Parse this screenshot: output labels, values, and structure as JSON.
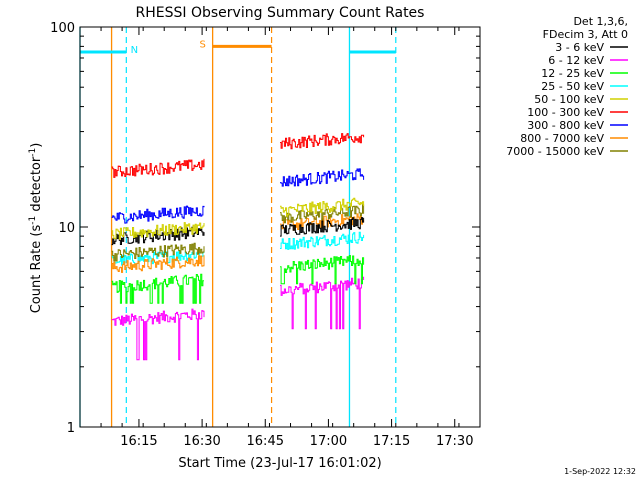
{
  "chart_data": {
    "type": "line",
    "title": "RHESSI Observing Summary Count Rates",
    "xlabel": "Start Time (23-Jul-17 16:01:02)",
    "ylabel_main": "Count Rate (s",
    "ylabel_sup1": "-1",
    "ylabel_mid": " detector",
    "ylabel_sup2": "-1",
    "ylabel_end": ")",
    "yscale": "log",
    "ylim": [
      1,
      100
    ],
    "xlim_minutes": [
      0,
      95
    ],
    "x_ticks": [
      {
        "minute": 14,
        "label": "16:15"
      },
      {
        "minute": 29,
        "label": "16:30"
      },
      {
        "minute": 44,
        "label": "16:45"
      },
      {
        "minute": 59,
        "label": "17:00"
      },
      {
        "minute": 74,
        "label": "17:15"
      },
      {
        "minute": 89,
        "label": "17:30"
      }
    ],
    "y_ticks": [
      {
        "value": 1,
        "label": "1"
      },
      {
        "value": 10,
        "label": "10"
      },
      {
        "value": 100,
        "label": "100"
      }
    ],
    "legend_header": [
      "Det 1,3,6,",
      "FDecim 3, Att 0"
    ],
    "intervals": [
      {
        "start_minute": 7.5,
        "end_minute": 29.5
      },
      {
        "start_minute": 47.5,
        "end_minute": 67.5
      }
    ],
    "series": [
      {
        "name": "3 - 6 keV",
        "color": "#000000",
        "level1": 9.0,
        "level2": 10.0
      },
      {
        "name": "6 - 12 keV",
        "color": "#ff00ff",
        "level1": 3.5,
        "level2": 5.0
      },
      {
        "name": "12 - 25 keV",
        "color": "#00ff00",
        "level1": 5.2,
        "level2": 6.5
      },
      {
        "name": "25 - 50 keV",
        "color": "#00ffff",
        "level1": 7.0,
        "level2": 8.5
      },
      {
        "name": "50 - 100 keV",
        "color": "#d0d000",
        "level1": 9.5,
        "level2": 12.5
      },
      {
        "name": "100 - 300 keV",
        "color": "#ff0000",
        "level1": 19.5,
        "level2": 27.0
      },
      {
        "name": "300 - 800 keV",
        "color": "#0000ff",
        "level1": 11.5,
        "level2": 17.5
      },
      {
        "name": "800 - 7000 keV",
        "color": "#ff8c00",
        "level1": 6.5,
        "level2": 10.5
      },
      {
        "name": "7000 - 15000 keV",
        "color": "#808000",
        "level1": 7.5,
        "level2": 11.5
      }
    ],
    "flags": [
      {
        "label": "N",
        "color": "#00e5ff",
        "start_minute": 0,
        "end_minute": 11,
        "value": 75
      },
      {
        "label": "S",
        "color": "#ff8c00",
        "start_minute": 31.5,
        "end_minute": 45.5,
        "value": 80
      },
      {
        "label": "",
        "color": "#00e5ff",
        "start_minute": 64,
        "end_minute": 75,
        "value": 75
      }
    ],
    "solid_markers": [
      {
        "minute": 0,
        "color": "#00e5ff"
      },
      {
        "minute": 7.5,
        "color": "#ff8c00"
      },
      {
        "minute": 31.5,
        "color": "#ff8c00"
      },
      {
        "minute": 64,
        "color": "#00e5ff"
      }
    ],
    "dashed_markers": [
      {
        "minute": 11,
        "color": "#00e5ff"
      },
      {
        "minute": 45.5,
        "color": "#ff8c00"
      },
      {
        "minute": 75,
        "color": "#00e5ff"
      }
    ]
  },
  "footer": {
    "date": "1-Sep-2022 12:32"
  }
}
